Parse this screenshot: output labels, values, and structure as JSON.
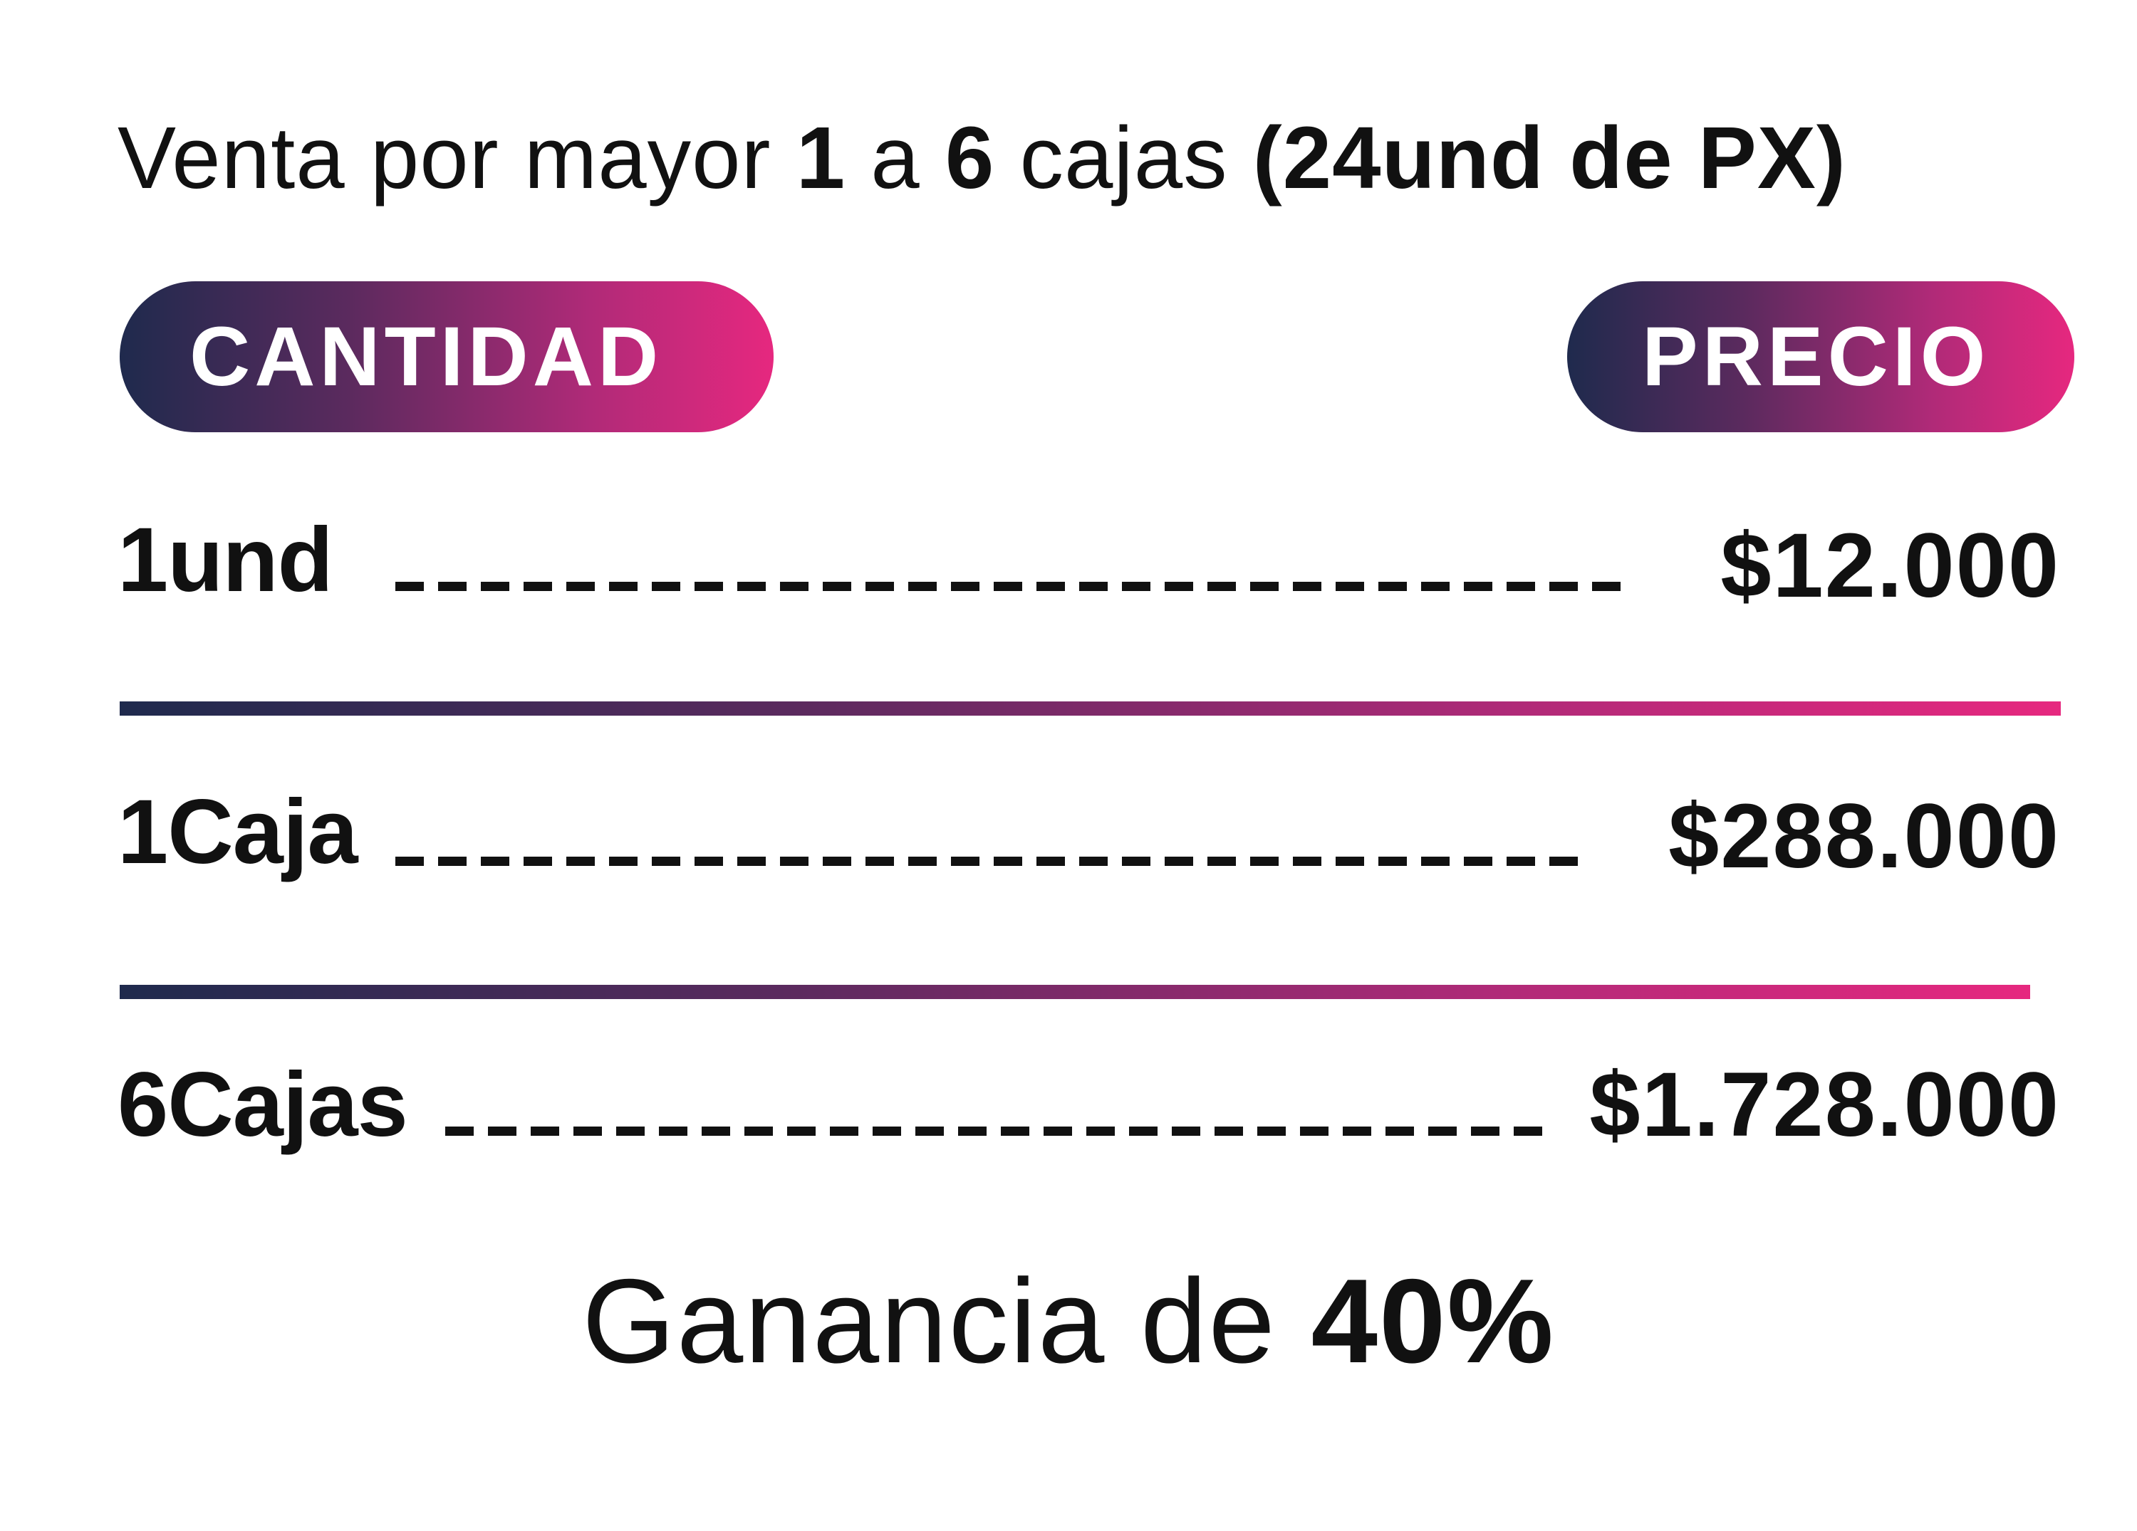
{
  "header": {
    "t1": "Venta por mayor ",
    "n1": "1",
    "t2": " a ",
    "n2": "6",
    "t3": " cajas ",
    "paren": "(24und de PX)"
  },
  "columns": {
    "left": "CANTIDAD",
    "right": "PRECIO"
  },
  "rows": [
    {
      "qty": "1und",
      "price": "$12.000"
    },
    {
      "qty": "1Caja",
      "price": "$288.000"
    },
    {
      "qty": "6Cajas",
      "price": "$1.728.000"
    }
  ],
  "footer": {
    "prefix": "Ganancia de ",
    "value": "40%"
  },
  "colors": {
    "gradient_start": "#1f2a4d",
    "gradient_end": "#e6287f",
    "text": "#111111"
  }
}
